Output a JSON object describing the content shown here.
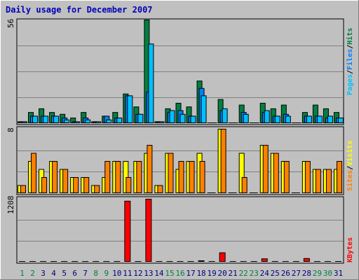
{
  "header": {
    "title": "Daily usage for December 2007"
  },
  "colors": {
    "hits": "#008040",
    "files": "#0080ff",
    "pages": "#00c0ff",
    "visits": "#ffff00",
    "sites": "#ff8000",
    "kbytes": "#ff0000",
    "weekend_day": "#008040",
    "weekday": "#000080",
    "panel_bg": "#c0c0c0"
  },
  "panels": {
    "top": {
      "max_label": "56",
      "legend": {
        "pages": "Pages",
        "files": "Files",
        "hits": "Hits",
        "sep": "/"
      }
    },
    "middle": {
      "max_label": "8",
      "legend": {
        "sites": "Sites",
        "visits": "Visits",
        "sep": "/"
      }
    },
    "bottom": {
      "max_label": "1208",
      "legend": {
        "kbytes": "KBytes"
      }
    }
  },
  "chart_data": [
    {
      "type": "bar",
      "title": "Daily usage for December 2007",
      "ylim": [
        0,
        56
      ],
      "categories": [
        "1",
        "2",
        "3",
        "4",
        "5",
        "6",
        "7",
        "8",
        "9",
        "10",
        "11",
        "12",
        "13",
        "14",
        "15",
        "16",
        "17",
        "18",
        "19",
        "20",
        "21",
        "22",
        "23",
        "24",
        "25",
        "26",
        "27",
        "28",
        "29",
        "30",
        "31"
      ],
      "weekend_days": [
        "1",
        "2",
        "8",
        "9",
        "15",
        "16",
        "22",
        "23",
        "29",
        "30"
      ],
      "series": [
        {
          "name": "Hits",
          "values": [
            1,
            6,
            8,
            6,
            5,
            3,
            6,
            1,
            4,
            6,
            16,
            9,
            56,
            1,
            8,
            11,
            9,
            23,
            0,
            13,
            0,
            10,
            0,
            11,
            8,
            10,
            0,
            6,
            10,
            8,
            6
          ]
        },
        {
          "name": "Files",
          "values": [
            1,
            4,
            4,
            4,
            3,
            1,
            3,
            1,
            4,
            3,
            15,
            5,
            17,
            1,
            6,
            7,
            4,
            19,
            0,
            7,
            0,
            6,
            0,
            6,
            4,
            5,
            0,
            4,
            4,
            3,
            3
          ]
        },
        {
          "name": "Pages",
          "values": [
            1,
            4,
            4,
            4,
            2,
            1,
            2,
            1,
            2,
            3,
            15,
            5,
            43,
            1,
            7,
            5,
            4,
            15,
            0,
            8,
            0,
            5,
            0,
            7,
            4,
            4,
            0,
            4,
            4,
            4,
            3
          ]
        }
      ]
    },
    {
      "type": "bar",
      "ylim": [
        0,
        8
      ],
      "categories": [
        "1",
        "2",
        "3",
        "4",
        "5",
        "6",
        "7",
        "8",
        "9",
        "10",
        "11",
        "12",
        "13",
        "14",
        "15",
        "16",
        "17",
        "18",
        "19",
        "20",
        "21",
        "22",
        "23",
        "24",
        "25",
        "26",
        "27",
        "28",
        "29",
        "30",
        "31"
      ],
      "series": [
        {
          "name": "Visits",
          "values": [
            1,
            4,
            3,
            4,
            3,
            2,
            2,
            1,
            2,
            4,
            4,
            4,
            5,
            1,
            5,
            3,
            4,
            5,
            0,
            8,
            0,
            5,
            0,
            6,
            5,
            4,
            0,
            4,
            3,
            3,
            3
          ]
        },
        {
          "name": "Sites",
          "values": [
            1,
            5,
            2,
            4,
            3,
            2,
            2,
            1,
            4,
            4,
            2,
            4,
            6,
            1,
            5,
            4,
            4,
            4,
            0,
            8,
            0,
            2,
            0,
            6,
            5,
            4,
            0,
            4,
            3,
            3,
            4
          ]
        }
      ]
    },
    {
      "type": "bar",
      "ylim": [
        0,
        1208
      ],
      "categories": [
        "1",
        "2",
        "3",
        "4",
        "5",
        "6",
        "7",
        "8",
        "9",
        "10",
        "11",
        "12",
        "13",
        "14",
        "15",
        "16",
        "17",
        "18",
        "19",
        "20",
        "21",
        "22",
        "23",
        "24",
        "25",
        "26",
        "27",
        "28",
        "29",
        "30",
        "31"
      ],
      "series": [
        {
          "name": "KBytes",
          "values": [
            0,
            0,
            0,
            0,
            0,
            0,
            0,
            0,
            0,
            0,
            1170,
            0,
            1208,
            0,
            0,
            0,
            0,
            20,
            0,
            180,
            0,
            0,
            0,
            65,
            0,
            0,
            0,
            70,
            0,
            0,
            0
          ]
        }
      ]
    }
  ]
}
